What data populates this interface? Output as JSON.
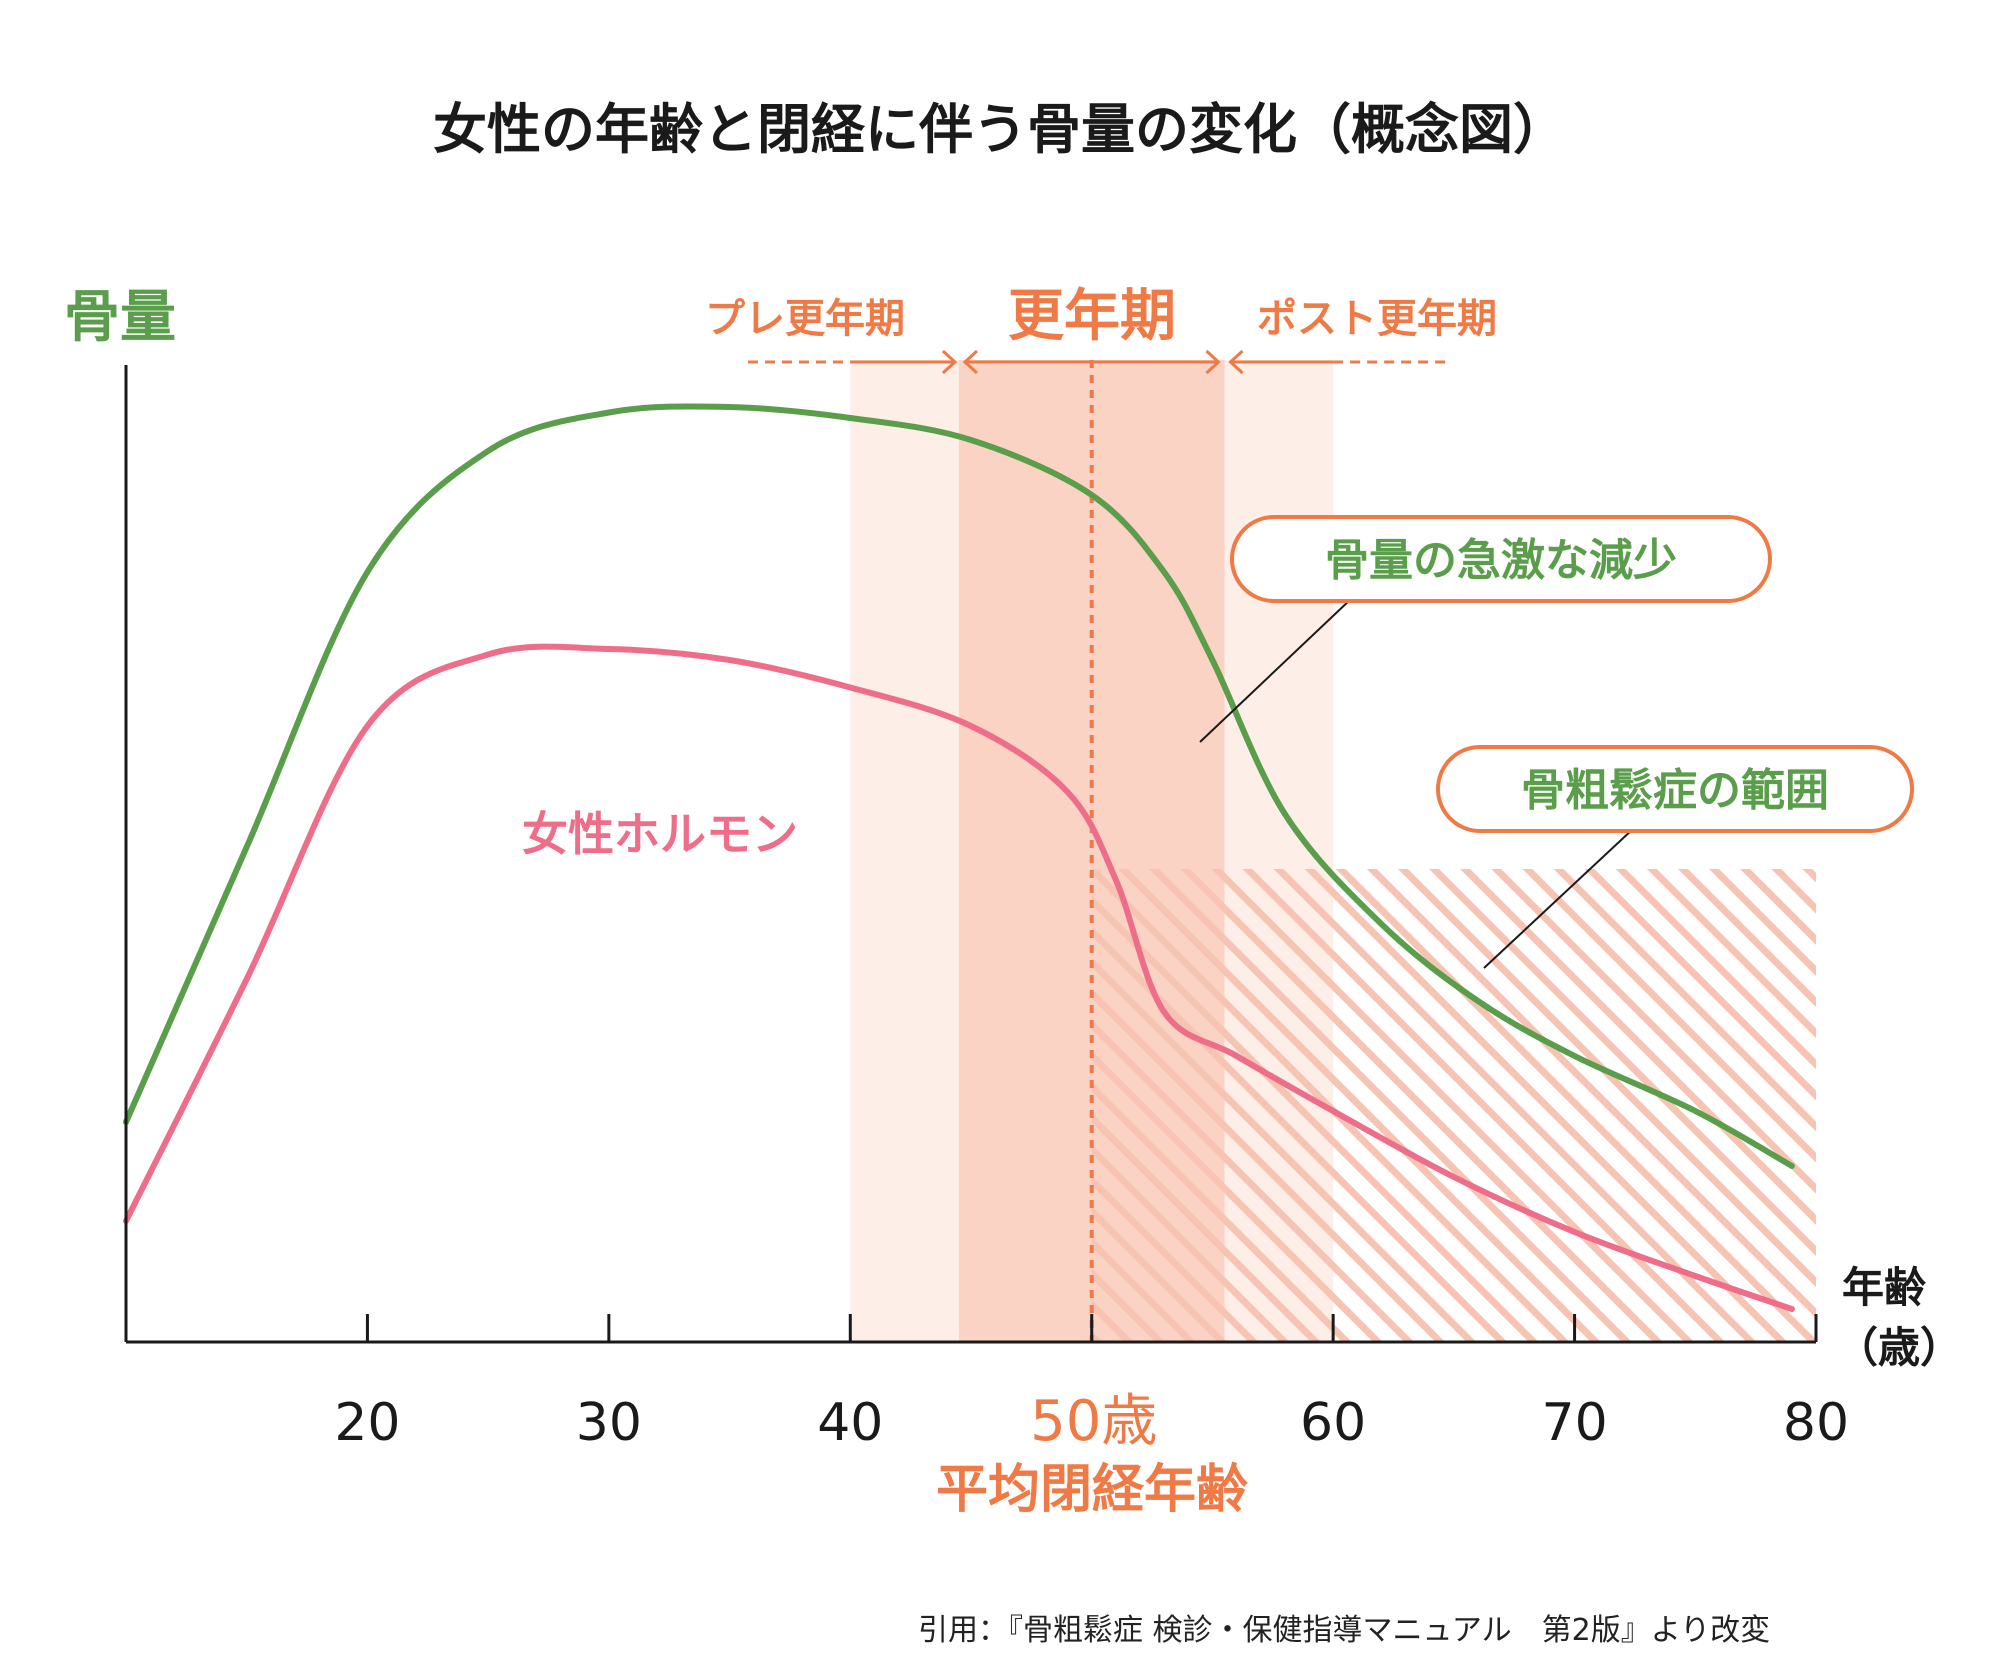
{
  "title": "女性の年齢と閉経に伴う骨量の変化（概念図）",
  "ylabel": "骨量",
  "xlabel": "年齢",
  "xlabel_unit": "（歳）",
  "phases": {
    "pre": "プレ更年期",
    "main": "更年期",
    "post": "ポスト更年期"
  },
  "average_menopause": {
    "tick_label": "50歳",
    "label": "平均閉経年齢"
  },
  "callouts": {
    "rapid_decrease": "骨量の急激な減少",
    "osteoporosis": "骨粗鬆症の範囲"
  },
  "source": "引用：『骨粗鬆症 検診・保健指導マニュアル　第2版』より改変",
  "colors": {
    "bone": "#5a9e4b",
    "hormone": "#ee6e8a",
    "accent": "#ef7a45",
    "band_light": "#fdeee8",
    "band_dark": "#fbd3c4",
    "hatch": "#f7c4b3",
    "axis": "#1a1a1a"
  },
  "chart_data": {
    "type": "line",
    "xlim": [
      10,
      80
    ],
    "ylim": [
      0,
      100
    ],
    "x_ticks": [
      20,
      30,
      40,
      50,
      60,
      70,
      80
    ],
    "x_tick_labels": [
      "20",
      "30",
      "40",
      "50歳",
      "60",
      "70",
      "80"
    ],
    "series": [
      {
        "name": "骨量",
        "x": [
          10,
          15,
          20,
          25,
          30,
          35,
          40,
          45,
          50,
          53,
          55,
          58,
          62,
          66,
          70,
          75,
          79
        ],
        "y": [
          20,
          45,
          70,
          81,
          84.5,
          85,
          84,
          82,
          77,
          70,
          62,
          48,
          38,
          31,
          26,
          21,
          16
        ]
      },
      {
        "name": "女性ホルモン",
        "x": [
          10,
          15,
          20,
          25,
          30,
          35,
          40,
          45,
          49,
          51,
          53,
          56,
          60,
          65,
          70,
          75,
          79
        ],
        "y": [
          11,
          33,
          56,
          62.5,
          63,
          62,
          59.5,
          56,
          50,
          42,
          30,
          26,
          21,
          15,
          10,
          6,
          3
        ]
      }
    ],
    "regions": {
      "pre_menopause": [
        40,
        44.5
      ],
      "menopause": [
        44.5,
        55.5
      ],
      "post_menopause": [
        55.5,
        60
      ],
      "average_menopause_age": 50,
      "osteoporosis_range": {
        "x": [
          50,
          80
        ],
        "y": [
          0,
          43
        ]
      }
    }
  }
}
